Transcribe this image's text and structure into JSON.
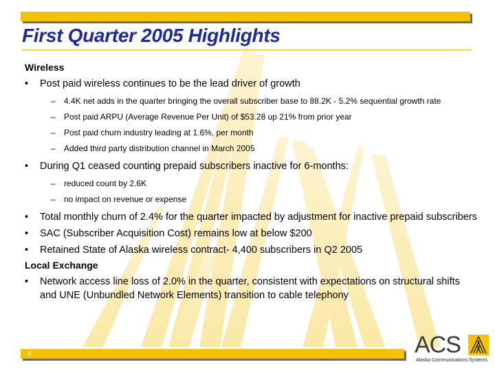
{
  "slide": {
    "title": "First Quarter 2005 Highlights",
    "page_number": "4"
  },
  "sections": {
    "wireless": {
      "heading": "Wireless",
      "bullets": [
        {
          "text": "Post paid wireless continues to be the lead driver of growth",
          "subs": [
            "4.4K net adds in the quarter bringing the overall subscriber base to 88.2K - 5.2% sequential growth rate",
            "Post paid ARPU (Average Revenue Per Unit) of $53.28 up 21% from prior year",
            "Post paid churn industry leading at 1.6%, per month",
            "Added third party distribution channel in March 2005"
          ]
        },
        {
          "text": "During Q1 ceased counting prepaid subscribers inactive for 6-months:",
          "subs": [
            "reduced count by 2.6K",
            "no impact on revenue or expense"
          ]
        },
        {
          "text": "Total monthly churn of 2.4% for the quarter impacted by adjustment for inactive prepaid subscribers"
        },
        {
          "text": "SAC (Subscriber Acquisition Cost) remains low at below $200"
        },
        {
          "text": "Retained State of Alaska wireless contract- 4,400 subscribers in Q2 2005"
        }
      ]
    },
    "local_exchange": {
      "heading": "Local Exchange",
      "bullets": [
        {
          "text": "Network access line loss of 2.0% in the quarter, consistent with expectations on structural shifts and UNE (Unbundled Network Elements) transition to cable telephony"
        }
      ]
    }
  },
  "logo": {
    "text": "ACS",
    "tagline": "Alaska Communications Systems"
  },
  "colors": {
    "accent_yellow": "#f5c200",
    "title_blue": "#1e2a9c"
  },
  "glyphs": {
    "bullet": "•",
    "dash": "–"
  }
}
